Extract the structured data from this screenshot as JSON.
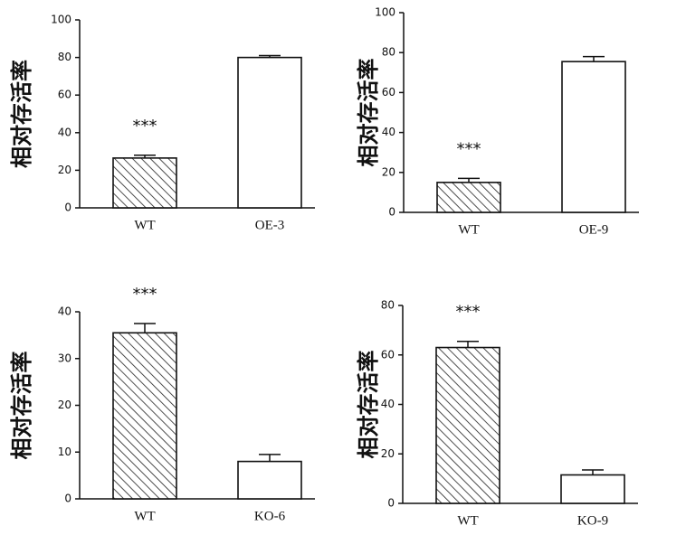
{
  "chart_data": [
    {
      "type": "bar",
      "y_label": "相对存活率",
      "categories": [
        "WT",
        "OE-3"
      ],
      "values": [
        26.5,
        80
      ],
      "errors": [
        1.5,
        1
      ],
      "significance": [
        "***",
        null
      ],
      "ylim": [
        0,
        100
      ],
      "yticks": [
        0,
        20,
        40,
        60,
        80,
        100
      ],
      "colors": [
        "hatch",
        "#ffffff"
      ]
    },
    {
      "type": "bar",
      "y_label": "相对存活率",
      "categories": [
        "WT",
        "OE-9"
      ],
      "values": [
        15,
        75.5
      ],
      "errors": [
        2,
        2.5
      ],
      "significance": [
        "***",
        null
      ],
      "ylim": [
        0,
        100
      ],
      "yticks": [
        0,
        20,
        40,
        60,
        80,
        100
      ],
      "colors": [
        "hatch",
        "#ffffff"
      ]
    },
    {
      "type": "bar",
      "y_label": "相对存活率",
      "categories": [
        "WT",
        "KO-6"
      ],
      "values": [
        35.5,
        8
      ],
      "errors": [
        2,
        1.5
      ],
      "significance": [
        "***",
        null
      ],
      "ylim": [
        0,
        40
      ],
      "yticks": [
        0,
        10,
        20,
        30,
        40
      ],
      "colors": [
        "hatch",
        "#ffffff"
      ]
    },
    {
      "type": "bar",
      "y_label": "相对存活率",
      "categories": [
        "WT",
        "KO-9"
      ],
      "values": [
        63,
        11.5
      ],
      "errors": [
        2.5,
        2
      ],
      "significance": [
        "***",
        null
      ],
      "ylim": [
        0,
        80
      ],
      "yticks": [
        0,
        20,
        40,
        60,
        80
      ],
      "colors": [
        "hatch",
        "#ffffff"
      ]
    }
  ]
}
